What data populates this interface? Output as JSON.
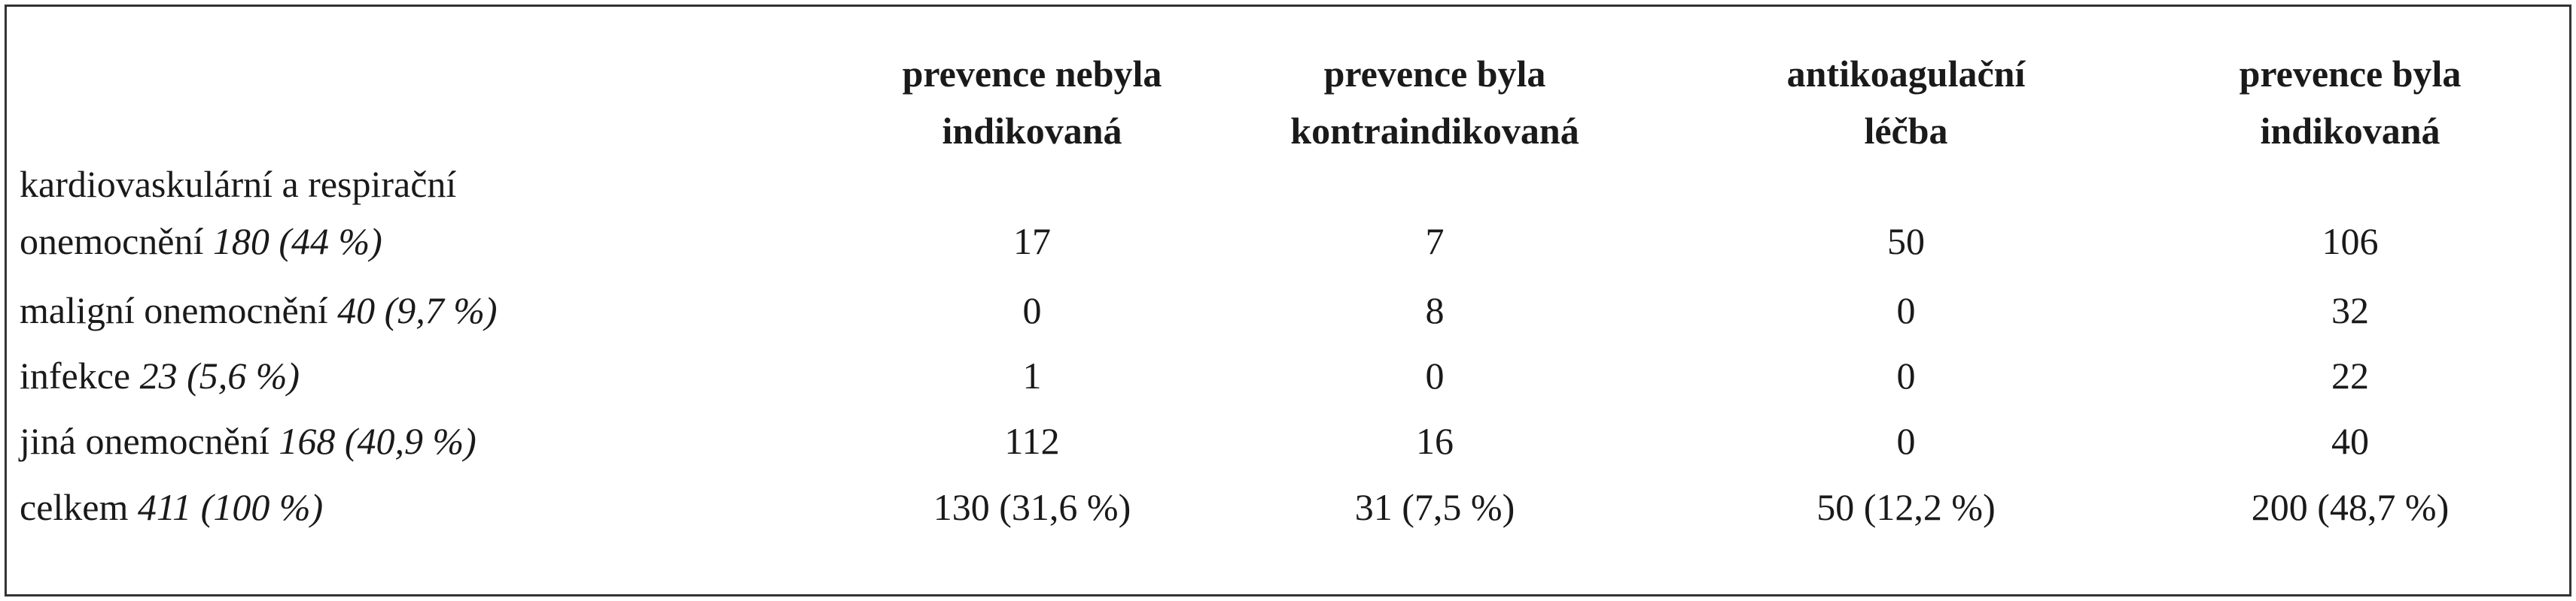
{
  "table": {
    "headers": [
      [
        "prevence nebyla",
        "indikovaná"
      ],
      [
        "prevence byla",
        "kontraindikovaná"
      ],
      [
        "antikoagulační",
        "léčba"
      ],
      [
        "prevence byla",
        "indikovaná"
      ]
    ],
    "rows": [
      {
        "label": [
          "kardiovaskulární a respirační",
          "onemocnění"
        ],
        "note": "180 (44 %)",
        "cells": [
          17,
          7,
          50,
          106
        ]
      },
      {
        "label": [
          "maligní onemocnění"
        ],
        "note": "40 (9,7 %)",
        "cells": [
          0,
          8,
          0,
          32
        ]
      },
      {
        "label": [
          "infekce"
        ],
        "note": "23 (5,6 %)",
        "cells": [
          1,
          0,
          0,
          22
        ]
      },
      {
        "label": [
          "jiná onemocnění"
        ],
        "note": "168 (40,9 %)",
        "cells": [
          112,
          16,
          0,
          40
        ]
      },
      {
        "label": [
          "celkem"
        ],
        "note": "411 (100 %)",
        "cells": [
          "130 (31,6 %)",
          "31 (7,5 %)",
          "50 (12,2 %)",
          "200 (48,7 %)"
        ]
      }
    ]
  }
}
